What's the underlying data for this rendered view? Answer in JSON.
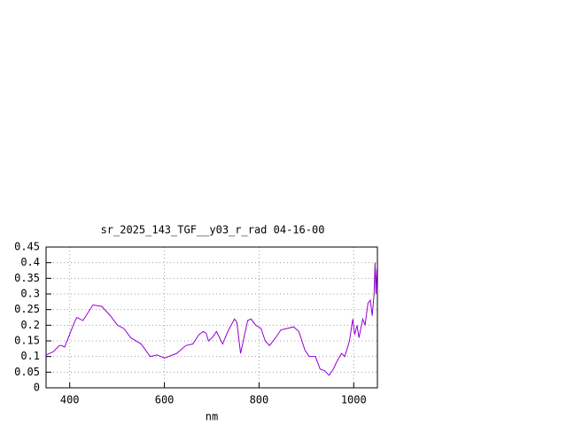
{
  "chart_data": {
    "type": "line",
    "title": "sr_2025_143_TGF__y03_r_rad 04-16-00",
    "x_label": "nm",
    "x": [
      350,
      365,
      378,
      383,
      389,
      397,
      410,
      415,
      428,
      449,
      468,
      486,
      501,
      514,
      529,
      551,
      570,
      585,
      600,
      626,
      645,
      660,
      673,
      682,
      688,
      693,
      701,
      710,
      723,
      734,
      748,
      753,
      761,
      768,
      776,
      783,
      793,
      804,
      813,
      822,
      835,
      846,
      860,
      873,
      884,
      897,
      906,
      919,
      929,
      938,
      948,
      957,
      963,
      974,
      981,
      991,
      998,
      1002,
      1007,
      1011,
      1019,
      1024,
      1030,
      1035,
      1039,
      1043,
      1045,
      1047,
      1049
    ],
    "series": [
      {
        "color": "#9400d3",
        "values": [
          0.105,
          0.115,
          0.135,
          0.135,
          0.13,
          0.16,
          0.21,
          0.225,
          0.215,
          0.265,
          0.26,
          0.23,
          0.2,
          0.19,
          0.16,
          0.14,
          0.1,
          0.105,
          0.095,
          0.11,
          0.135,
          0.14,
          0.17,
          0.18,
          0.175,
          0.15,
          0.16,
          0.18,
          0.14,
          0.18,
          0.22,
          0.21,
          0.11,
          0.16,
          0.215,
          0.22,
          0.2,
          0.19,
          0.15,
          0.135,
          0.16,
          0.185,
          0.19,
          0.195,
          0.18,
          0.12,
          0.1,
          0.1,
          0.06,
          0.055,
          0.04,
          0.06,
          0.08,
          0.11,
          0.1,
          0.15,
          0.22,
          0.17,
          0.2,
          0.16,
          0.22,
          0.2,
          0.27,
          0.28,
          0.23,
          0.3,
          0.4,
          0.3,
          0.38
        ]
      }
    ],
    "xlim": [
      350,
      1050
    ],
    "xticks": [
      400,
      600,
      800,
      1000
    ],
    "ylim": [
      0,
      0.45
    ],
    "yticks": [
      0,
      0.05,
      0.1,
      0.15,
      0.2,
      0.25,
      0.3,
      0.35,
      0.4,
      0.45
    ],
    "grid": true
  }
}
